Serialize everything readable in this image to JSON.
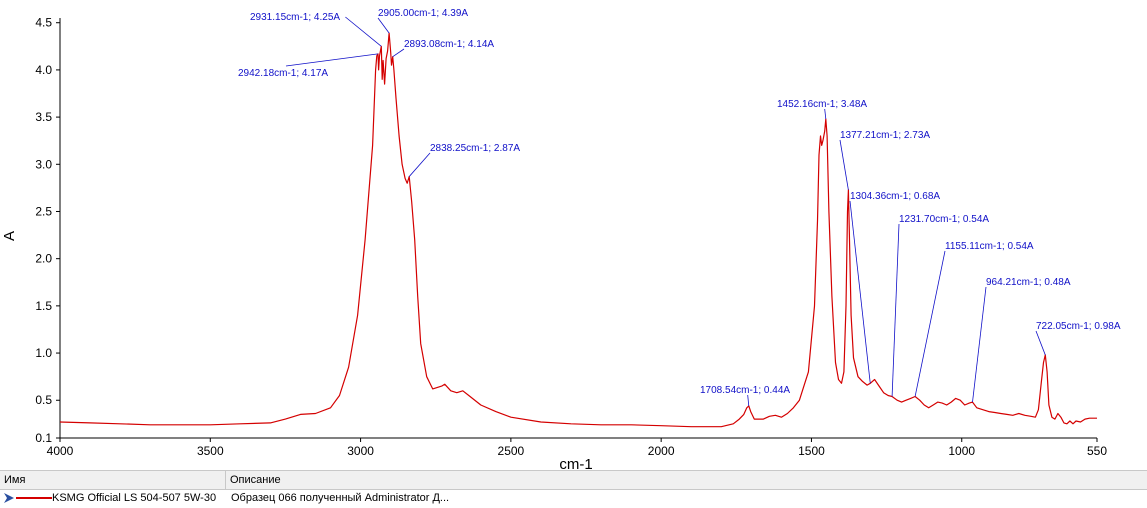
{
  "chart_data": {
    "type": "line",
    "xlabel": "cm-1",
    "ylabel": "A",
    "xlim": [
      4000,
      550
    ],
    "ylim": [
      0.1,
      4.55
    ],
    "x_ticks": [
      4000,
      3500,
      3000,
      2500,
      2000,
      1500,
      1000,
      550
    ],
    "x_tick_labels": [
      "4000",
      "3500",
      "3000",
      "2500",
      "2000",
      "1500",
      "1000",
      "550"
    ],
    "y_ticks": [
      0.1,
      0.5,
      1.0,
      1.5,
      2.0,
      2.5,
      3.0,
      3.5,
      4.0,
      4.5
    ],
    "y_tick_labels": [
      "0.1",
      "0.5",
      "1.0",
      "1.5",
      "2.0",
      "2.5",
      "3.0",
      "3.5",
      "4.0",
      "4.5"
    ],
    "series": [
      {
        "name": "KSMG Official LS 504-507 5W-30",
        "color": "#d40000",
        "points": [
          [
            4000,
            0.27
          ],
          [
            3900,
            0.26
          ],
          [
            3800,
            0.25
          ],
          [
            3700,
            0.24
          ],
          [
            3600,
            0.24
          ],
          [
            3500,
            0.24
          ],
          [
            3400,
            0.25
          ],
          [
            3300,
            0.26
          ],
          [
            3250,
            0.3
          ],
          [
            3200,
            0.35
          ],
          [
            3150,
            0.36
          ],
          [
            3100,
            0.42
          ],
          [
            3070,
            0.55
          ],
          [
            3040,
            0.85
          ],
          [
            3010,
            1.4
          ],
          [
            2985,
            2.2
          ],
          [
            2970,
            2.8
          ],
          [
            2960,
            3.2
          ],
          [
            2955,
            3.6
          ],
          [
            2950,
            4.0
          ],
          [
            2946,
            4.15
          ],
          [
            2942.18,
            4.17
          ],
          [
            2940,
            4.0
          ],
          [
            2937,
            4.15
          ],
          [
            2931.15,
            4.25
          ],
          [
            2928,
            3.9
          ],
          [
            2925,
            4.1
          ],
          [
            2920,
            3.85
          ],
          [
            2915,
            4.12
          ],
          [
            2910,
            4.2
          ],
          [
            2905,
            4.39
          ],
          [
            2900,
            4.2
          ],
          [
            2897,
            4.05
          ],
          [
            2893.08,
            4.14
          ],
          [
            2889,
            4.0
          ],
          [
            2882,
            3.7
          ],
          [
            2872,
            3.3
          ],
          [
            2862,
            3.0
          ],
          [
            2852,
            2.85
          ],
          [
            2845,
            2.8
          ],
          [
            2838.25,
            2.87
          ],
          [
            2830,
            2.6
          ],
          [
            2820,
            2.2
          ],
          [
            2810,
            1.6
          ],
          [
            2800,
            1.1
          ],
          [
            2780,
            0.75
          ],
          [
            2760,
            0.62
          ],
          [
            2730,
            0.65
          ],
          [
            2720,
            0.67
          ],
          [
            2700,
            0.6
          ],
          [
            2680,
            0.58
          ],
          [
            2660,
            0.6
          ],
          [
            2640,
            0.55
          ],
          [
            2600,
            0.45
          ],
          [
            2550,
            0.38
          ],
          [
            2500,
            0.32
          ],
          [
            2400,
            0.27
          ],
          [
            2300,
            0.25
          ],
          [
            2200,
            0.24
          ],
          [
            2100,
            0.24
          ],
          [
            2000,
            0.23
          ],
          [
            1900,
            0.22
          ],
          [
            1800,
            0.22
          ],
          [
            1760,
            0.25
          ],
          [
            1740,
            0.3
          ],
          [
            1725,
            0.35
          ],
          [
            1715,
            0.42
          ],
          [
            1708.54,
            0.44
          ],
          [
            1702,
            0.38
          ],
          [
            1690,
            0.3
          ],
          [
            1660,
            0.3
          ],
          [
            1640,
            0.33
          ],
          [
            1620,
            0.34
          ],
          [
            1600,
            0.32
          ],
          [
            1580,
            0.36
          ],
          [
            1560,
            0.42
          ],
          [
            1540,
            0.5
          ],
          [
            1510,
            0.8
          ],
          [
            1490,
            1.5
          ],
          [
            1480,
            2.4
          ],
          [
            1475,
            3.1
          ],
          [
            1470,
            3.3
          ],
          [
            1466,
            3.2
          ],
          [
            1462,
            3.25
          ],
          [
            1456,
            3.35
          ],
          [
            1452.16,
            3.48
          ],
          [
            1448,
            3.3
          ],
          [
            1442,
            2.5
          ],
          [
            1432,
            1.6
          ],
          [
            1420,
            0.9
          ],
          [
            1410,
            0.72
          ],
          [
            1400,
            0.68
          ],
          [
            1392,
            0.8
          ],
          [
            1385,
            1.5
          ],
          [
            1380,
            2.5
          ],
          [
            1377.21,
            2.73
          ],
          [
            1374,
            2.3
          ],
          [
            1368,
            1.4
          ],
          [
            1360,
            0.95
          ],
          [
            1345,
            0.75
          ],
          [
            1330,
            0.7
          ],
          [
            1315,
            0.66
          ],
          [
            1304.36,
            0.68
          ],
          [
            1290,
            0.72
          ],
          [
            1275,
            0.65
          ],
          [
            1260,
            0.58
          ],
          [
            1245,
            0.55
          ],
          [
            1231.7,
            0.54
          ],
          [
            1215,
            0.5
          ],
          [
            1200,
            0.48
          ],
          [
            1185,
            0.5
          ],
          [
            1170,
            0.52
          ],
          [
            1155.11,
            0.54
          ],
          [
            1140,
            0.5
          ],
          [
            1125,
            0.45
          ],
          [
            1110,
            0.42
          ],
          [
            1095,
            0.45
          ],
          [
            1080,
            0.48
          ],
          [
            1065,
            0.47
          ],
          [
            1050,
            0.45
          ],
          [
            1035,
            0.48
          ],
          [
            1020,
            0.52
          ],
          [
            1005,
            0.5
          ],
          [
            990,
            0.45
          ],
          [
            975,
            0.47
          ],
          [
            964.21,
            0.48
          ],
          [
            950,
            0.42
          ],
          [
            930,
            0.4
          ],
          [
            910,
            0.38
          ],
          [
            890,
            0.37
          ],
          [
            870,
            0.36
          ],
          [
            850,
            0.35
          ],
          [
            830,
            0.34
          ],
          [
            810,
            0.36
          ],
          [
            790,
            0.34
          ],
          [
            770,
            0.33
          ],
          [
            755,
            0.32
          ],
          [
            745,
            0.4
          ],
          [
            735,
            0.7
          ],
          [
            728,
            0.9
          ],
          [
            722.05,
            0.98
          ],
          [
            716,
            0.8
          ],
          [
            710,
            0.45
          ],
          [
            700,
            0.32
          ],
          [
            690,
            0.3
          ],
          [
            680,
            0.36
          ],
          [
            670,
            0.32
          ],
          [
            660,
            0.26
          ],
          [
            650,
            0.25
          ],
          [
            640,
            0.28
          ],
          [
            630,
            0.25
          ],
          [
            620,
            0.28
          ],
          [
            605,
            0.27
          ],
          [
            590,
            0.3
          ],
          [
            575,
            0.31
          ],
          [
            560,
            0.31
          ],
          [
            550,
            0.31
          ]
        ]
      }
    ],
    "annotations": [
      {
        "x": 2931.15,
        "y": 4.25,
        "text": "2931.15cm-1; 4.25A",
        "side": "left"
      },
      {
        "x": 2905.0,
        "y": 4.39,
        "text": "2905.00cm-1; 4.39A",
        "side": "right"
      },
      {
        "x": 2893.08,
        "y": 4.14,
        "text": "2893.08cm-1; 4.14A",
        "side": "right"
      },
      {
        "x": 2942.18,
        "y": 4.17,
        "text": "2942.18cm-1; 4.17A",
        "side": "left"
      },
      {
        "x": 2838.25,
        "y": 2.87,
        "text": "2838.25cm-1; 2.87A",
        "side": "right"
      },
      {
        "x": 1452.16,
        "y": 3.48,
        "text": "1452.16cm-1; 3.48A",
        "side": "above"
      },
      {
        "x": 1377.21,
        "y": 2.73,
        "text": "1377.21cm-1; 2.73A",
        "side": "right"
      },
      {
        "x": 1304.36,
        "y": 0.68,
        "text": "1304.36cm-1; 0.68A",
        "side": "right"
      },
      {
        "x": 1231.7,
        "y": 0.54,
        "text": "1231.70cm-1; 0.54A",
        "side": "right"
      },
      {
        "x": 1155.11,
        "y": 0.54,
        "text": "1155.11cm-1; 0.54A",
        "side": "right"
      },
      {
        "x": 964.21,
        "y": 0.48,
        "text": "964.21cm-1; 0.48A",
        "side": "right"
      },
      {
        "x": 722.05,
        "y": 0.98,
        "text": "722.05cm-1; 0.98A",
        "side": "right"
      },
      {
        "x": 1708.54,
        "y": 0.44,
        "text": "1708.54cm-1; 0.44A",
        "side": "above"
      }
    ]
  },
  "legend_table": {
    "col_name_header": "Имя",
    "col_desc_header": "Описание",
    "rows": [
      {
        "name": "KSMG Official LS 504-507 5W-30",
        "description": "Образец 066 полученный Administrator Д..."
      }
    ]
  }
}
